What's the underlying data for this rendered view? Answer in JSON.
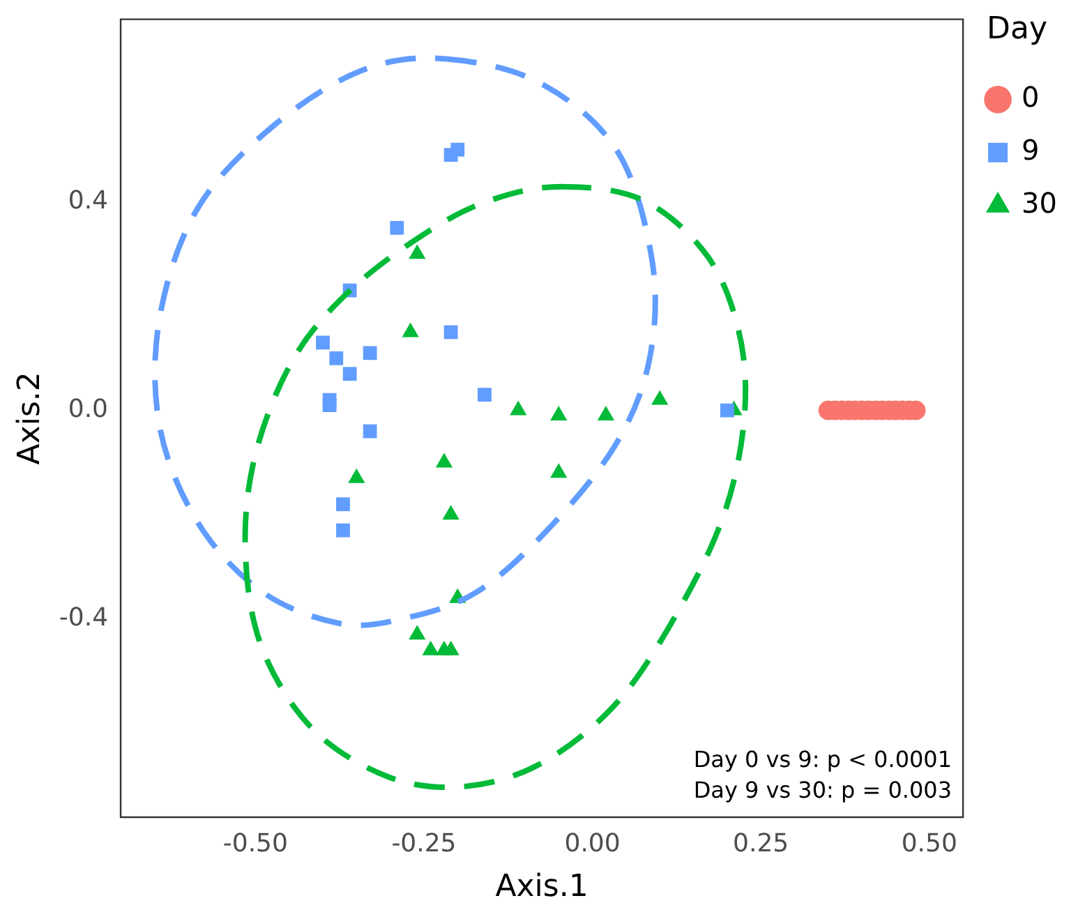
{
  "chart_data": {
    "type": "scatter",
    "xlabel": "Axis.1",
    "ylabel": "Axis.2",
    "legend_title": "Day",
    "legend": "right",
    "grid": false,
    "xlim": [
      -0.7,
      0.55
    ],
    "ylim": [
      -0.78,
      0.75
    ],
    "xticks": [
      {
        "value": -0.5,
        "label": "-0.50"
      },
      {
        "value": -0.25,
        "label": "-0.25"
      },
      {
        "value": 0,
        "label": "0.00"
      },
      {
        "value": 0.25,
        "label": "0.25"
      },
      {
        "value": 0.5,
        "label": "0.50"
      }
    ],
    "yticks": [
      {
        "value": -0.4,
        "label": "-0.4"
      },
      {
        "value": 0,
        "label": "0.0"
      },
      {
        "value": 0.4,
        "label": "0.4"
      }
    ],
    "annotations": [
      "Day 0 vs 9: p < 0.0001",
      "Day 9 vs 30: p = 0.003"
    ],
    "series": [
      {
        "name": "0",
        "type": "scatter",
        "marker": "circle",
        "color": "#f8766d",
        "x": [
          0.35,
          0.36,
          0.37,
          0.38,
          0.39,
          0.4,
          0.41,
          0.42,
          0.43,
          0.44,
          0.45,
          0.46,
          0.47,
          0.48
        ],
        "values": [
          0.0,
          0.0,
          0.0,
          0.0,
          0.0,
          0.0,
          0.0,
          0.0,
          0.0,
          0.0,
          0.0,
          0.0,
          0.0,
          0.0
        ]
      },
      {
        "name": "9",
        "type": "scatter",
        "marker": "square",
        "color": "#619cff",
        "x": [
          -0.21,
          -0.2,
          -0.29,
          -0.36,
          -0.4,
          -0.38,
          -0.36,
          -0.33,
          -0.21,
          -0.39,
          -0.39,
          -0.33,
          -0.16,
          0.2,
          -0.37,
          -0.37
        ],
        "values": [
          0.49,
          0.5,
          0.35,
          0.23,
          0.13,
          0.1,
          0.07,
          0.11,
          0.15,
          0.02,
          0.01,
          -0.04,
          0.03,
          0.0,
          -0.18,
          -0.23
        ]
      },
      {
        "name": "30",
        "type": "scatter",
        "marker": "triangle",
        "color": "#00ba38",
        "x": [
          -0.26,
          -0.27,
          -0.11,
          -0.05,
          0.02,
          0.1,
          0.21,
          -0.35,
          -0.22,
          -0.05,
          -0.21,
          -0.2,
          -0.26,
          -0.24,
          -0.22,
          -0.21
        ],
        "values": [
          0.3,
          0.15,
          0.0,
          -0.01,
          -0.01,
          0.02,
          0.0,
          -0.13,
          -0.1,
          -0.12,
          -0.2,
          -0.36,
          -0.43,
          -0.46,
          -0.46,
          -0.46
        ]
      }
    ]
  }
}
